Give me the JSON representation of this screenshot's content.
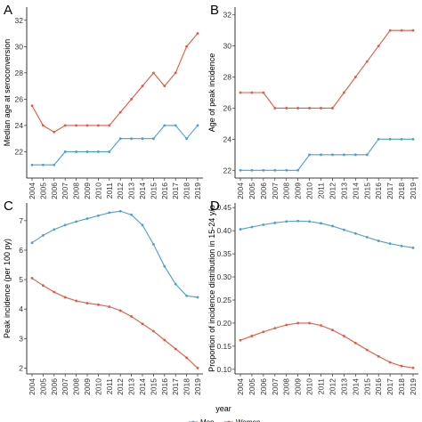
{
  "figure": {
    "shared_xlabel": "year",
    "legend": {
      "placement": "bottom",
      "entries": [
        {
          "name": "Men",
          "color": "#4a9fd5"
        },
        {
          "name": "Women",
          "color": "#e8573f"
        }
      ]
    }
  },
  "chart_data": [
    {
      "panel": "A",
      "type": "line",
      "title": "",
      "xlabel": "",
      "ylabel": "Median age at seroconversion",
      "x": [
        2004,
        2005,
        2006,
        2007,
        2008,
        2009,
        2010,
        2011,
        2012,
        2013,
        2014,
        2015,
        2016,
        2017,
        2018,
        2019
      ],
      "ylim": [
        20,
        33
      ],
      "yticks": [
        22,
        24,
        26,
        28,
        30,
        32
      ],
      "grid": false,
      "series": [
        {
          "name": "Men",
          "color": "#4a9fd5",
          "values": [
            21,
            21,
            21,
            22,
            22,
            22,
            22,
            22,
            23,
            23,
            23,
            23,
            24,
            24,
            23,
            24
          ]
        },
        {
          "name": "Women",
          "color": "#e8573f",
          "values": [
            25.5,
            24,
            23.5,
            24,
            24,
            24,
            24,
            24,
            25,
            26,
            27,
            28,
            27,
            28,
            30,
            31
          ]
        }
      ]
    },
    {
      "panel": "B",
      "type": "line",
      "title": "",
      "xlabel": "",
      "ylabel": "Age of peak incidence",
      "x": [
        2004,
        2005,
        2006,
        2007,
        2008,
        2009,
        2010,
        2011,
        2012,
        2013,
        2014,
        2015,
        2016,
        2017,
        2018,
        2019
      ],
      "ylim": [
        21.5,
        32.5
      ],
      "yticks": [
        22,
        24,
        26,
        28,
        30,
        32
      ],
      "grid": false,
      "series": [
        {
          "name": "Men",
          "color": "#4a9fd5",
          "values": [
            22,
            22,
            22,
            22,
            22,
            22,
            23,
            23,
            23,
            23,
            23,
            23,
            24,
            24,
            24,
            24
          ]
        },
        {
          "name": "Women",
          "color": "#e8573f",
          "values": [
            27,
            27,
            27,
            26,
            26,
            26,
            26,
            26,
            26,
            27,
            28,
            29,
            30,
            31,
            31,
            31
          ]
        }
      ]
    },
    {
      "panel": "C",
      "type": "line",
      "title": "",
      "xlabel": "",
      "ylabel": "Peak incidence (per 100 py)",
      "x": [
        2004,
        2005,
        2006,
        2007,
        2008,
        2009,
        2010,
        2011,
        2012,
        2013,
        2014,
        2015,
        2016,
        2017,
        2018,
        2019
      ],
      "ylim": [
        1.8,
        7.6
      ],
      "yticks": [
        2,
        3,
        4,
        5,
        6,
        7
      ],
      "grid": false,
      "series": [
        {
          "name": "Men",
          "color": "#4a9fd5",
          "values": [
            6.25,
            6.5,
            6.7,
            6.85,
            6.97,
            7.07,
            7.17,
            7.27,
            7.32,
            7.2,
            6.85,
            6.2,
            5.45,
            4.85,
            4.45,
            4.4
          ]
        },
        {
          "name": "Women",
          "color": "#e8573f",
          "values": [
            5.05,
            4.8,
            4.58,
            4.4,
            4.28,
            4.2,
            4.15,
            4.08,
            3.95,
            3.75,
            3.5,
            3.25,
            2.95,
            2.65,
            2.35,
            2.0
          ]
        }
      ]
    },
    {
      "panel": "D",
      "type": "line",
      "title": "",
      "xlabel": "",
      "ylabel": "Proportion of incidence distribution in 15-24 y/o",
      "x": [
        2004,
        2005,
        2006,
        2007,
        2008,
        2009,
        2010,
        2011,
        2012,
        2013,
        2014,
        2015,
        2016,
        2017,
        2018,
        2019
      ],
      "ylim": [
        0.09,
        0.46
      ],
      "yticks": [
        0.1,
        0.15,
        0.2,
        0.25,
        0.3,
        0.35,
        0.4,
        0.45
      ],
      "grid": false,
      "series": [
        {
          "name": "Men",
          "color": "#4a9fd5",
          "values": [
            0.403,
            0.408,
            0.413,
            0.417,
            0.42,
            0.421,
            0.42,
            0.416,
            0.41,
            0.402,
            0.394,
            0.386,
            0.378,
            0.372,
            0.367,
            0.363
          ]
        },
        {
          "name": "Women",
          "color": "#e8573f",
          "values": [
            0.163,
            0.172,
            0.181,
            0.189,
            0.196,
            0.2,
            0.2,
            0.195,
            0.185,
            0.172,
            0.157,
            0.142,
            0.128,
            0.115,
            0.107,
            0.103
          ]
        }
      ]
    }
  ]
}
